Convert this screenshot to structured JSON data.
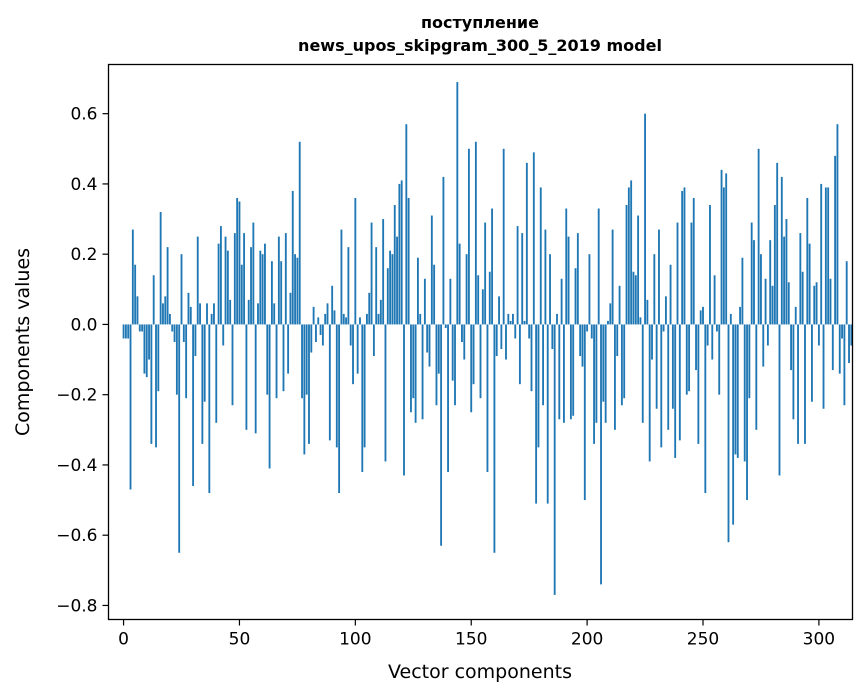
{
  "chart_data": {
    "type": "bar",
    "title": "поступление",
    "subtitle": "news_upos_skipgram_300_5_2019 model",
    "xlabel": "Vector components",
    "ylabel": "Components values",
    "xlim": [
      -6.5,
      314.5
    ],
    "ylim": [
      -0.84,
      0.74
    ],
    "xticks": [
      0,
      50,
      100,
      150,
      200,
      250,
      300
    ],
    "yticks": [
      -0.8,
      -0.6,
      -0.4,
      -0.2,
      0.0,
      0.2,
      0.4,
      0.6
    ],
    "ytick_labels": [
      "−0.8",
      "−0.6",
      "−0.4",
      "−0.2",
      "0.0",
      "0.2",
      "0.4",
      "0.6"
    ],
    "bar_color": "#1f77b4",
    "grid": false,
    "values": [
      -0.04,
      -0.04,
      -0.04,
      -0.47,
      0.27,
      0.17,
      0.08,
      -0.02,
      -0.02,
      -0.14,
      -0.15,
      -0.1,
      -0.34,
      0.14,
      -0.35,
      -0.19,
      0.32,
      0.06,
      0.08,
      0.22,
      0.03,
      -0.02,
      -0.05,
      -0.2,
      -0.65,
      0.2,
      -0.05,
      -0.21,
      0.09,
      0.05,
      -0.46,
      -0.09,
      0.25,
      0.06,
      -0.34,
      -0.22,
      0.06,
      -0.48,
      0.03,
      0.06,
      -0.28,
      0.23,
      0.28,
      -0.06,
      0.25,
      0.21,
      0.07,
      -0.23,
      0.26,
      0.36,
      0.35,
      0.17,
      0.26,
      -0.3,
      0.07,
      0.22,
      0.29,
      -0.31,
      0.06,
      0.21,
      0.2,
      0.23,
      -0.2,
      -0.41,
      0.18,
      0.06,
      -0.21,
      0.25,
      0.18,
      -0.19,
      0.26,
      -0.14,
      0.09,
      0.38,
      0.2,
      0.19,
      0.52,
      -0.21,
      -0.37,
      -0.2,
      -0.34,
      -0.08,
      0.05,
      -0.05,
      0.02,
      -0.03,
      -0.06,
      0.03,
      0.06,
      -0.33,
      0.11,
      0.04,
      -0.35,
      -0.48,
      0.27,
      0.03,
      0.02,
      0.22,
      -0.06,
      -0.17,
      0.36,
      -0.14,
      0.02,
      -0.42,
      -0.35,
      0.03,
      0.09,
      0.29,
      -0.09,
      0.22,
      0.03,
      0.07,
      0.3,
      -0.39,
      0.16,
      0.21,
      0.2,
      0.34,
      0.25,
      0.4,
      0.41,
      -0.43,
      0.57,
      0.36,
      -0.25,
      -0.21,
      -0.28,
      0.19,
      0.03,
      -0.27,
      0.13,
      -0.08,
      -0.12,
      0.31,
      0.17,
      -0.23,
      -0.14,
      -0.63,
      0.42,
      -0.01,
      -0.42,
      0.13,
      -0.16,
      -0.23,
      0.69,
      0.23,
      -0.05,
      -0.1,
      0.2,
      0.5,
      -0.25,
      -0.17,
      0.52,
      0.14,
      -0.21,
      0.1,
      0.29,
      -0.42,
      0.15,
      0.33,
      -0.65,
      -0.09,
      0.08,
      -0.07,
      0.5,
      -0.1,
      0.03,
      0.01,
      0.03,
      -0.04,
      0.28,
      -0.17,
      0.26,
      0.01,
      0.46,
      -0.04,
      -0.19,
      0.49,
      -0.51,
      -0.35,
      0.39,
      -0.23,
      0.27,
      -0.51,
      0.2,
      -0.07,
      -0.77,
      0.03,
      -0.27,
      0.13,
      -0.28,
      0.33,
      0.25,
      -0.27,
      -0.26,
      0.16,
      0.26,
      -0.09,
      -0.12,
      -0.5,
      -0.02,
      0.2,
      -0.04,
      -0.34,
      -0.28,
      0.33,
      -0.74,
      -0.22,
      -0.28,
      0.01,
      0.06,
      0.27,
      -0.3,
      -0.09,
      0.11,
      -0.23,
      -0.21,
      0.34,
      0.39,
      0.41,
      0.15,
      0.14,
      0.31,
      0.02,
      -0.28,
      0.6,
      0.07,
      -0.39,
      -0.1,
      0.2,
      -0.24,
      0.27,
      -0.35,
      -0.02,
      0.08,
      -0.3,
      0.17,
      -0.24,
      -0.38,
      0.29,
      -0.33,
      0.38,
      0.39,
      -0.2,
      -0.19,
      0.29,
      0.36,
      -0.13,
      -0.34,
      0.04,
      0.05,
      -0.48,
      -0.06,
      0.34,
      -0.1,
      0.14,
      -0.02,
      -0.2,
      0.44,
      0.39,
      0.43,
      -0.62,
      0.03,
      -0.57,
      -0.37,
      -0.38,
      0.05,
      0.19,
      -0.39,
      -0.5,
      -0.21,
      0.29,
      0.24,
      -0.3,
      0.5,
      0.2,
      -0.12,
      0.13,
      -0.06,
      0.24,
      0.11,
      0.34,
      0.46,
      -0.43,
      0.42,
      0.25,
      0.3,
      0.12,
      -0.13,
      -0.27,
      0.05,
      -0.34,
      0.26,
      0.15,
      -0.34,
      0.36,
      0.23,
      -0.22,
      0.11,
      0.12,
      -0.06,
      0.4,
      -0.24,
      0.39,
      0.39,
      0.13,
      -0.13,
      0.48,
      0.57,
      -0.14,
      -0.04,
      -0.23,
      0.18,
      -0.11,
      -0.06
    ]
  }
}
